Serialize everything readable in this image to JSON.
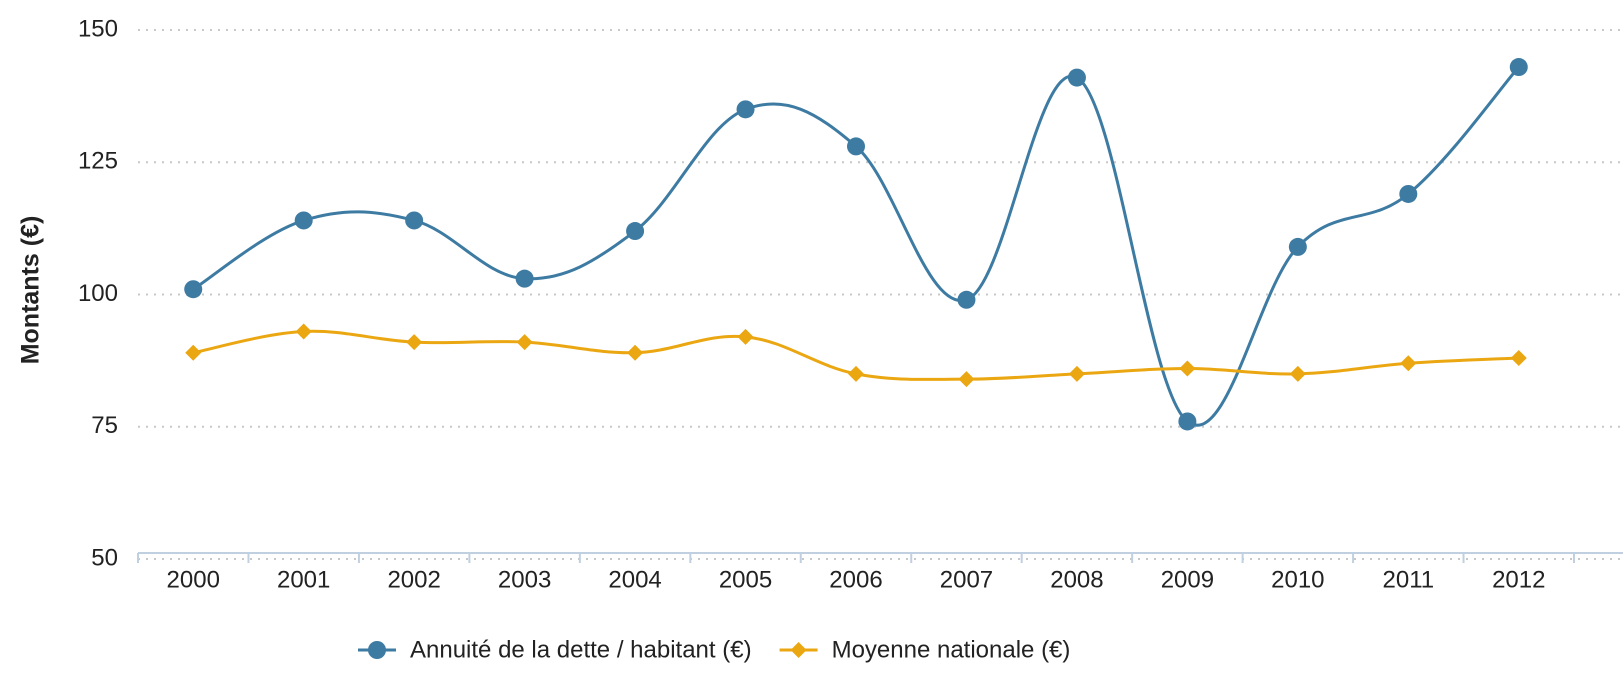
{
  "chart_data": {
    "type": "line",
    "y_label": "Montants (€)",
    "categories": [
      "2000",
      "2001",
      "2002",
      "2003",
      "2004",
      "2005",
      "2006",
      "2007",
      "2008",
      "2009",
      "2010",
      "2011",
      "2012"
    ],
    "series": [
      {
        "name": "Annuité de la dette / habitant (€)",
        "color": "#3d7ba3",
        "marker": "circle",
        "values": [
          101,
          114,
          114,
          103,
          112,
          135,
          128,
          99,
          141,
          76,
          109,
          119,
          143
        ]
      },
      {
        "name": "Moyenne nationale (€)",
        "color": "#eba712",
        "marker": "diamond",
        "values": [
          89,
          93,
          91,
          91,
          89,
          92,
          85,
          84,
          85,
          86,
          85,
          87,
          88
        ]
      }
    ],
    "ylim": [
      50,
      150
    ],
    "yticks": [
      50,
      75,
      100,
      125,
      150
    ],
    "grid": true
  }
}
